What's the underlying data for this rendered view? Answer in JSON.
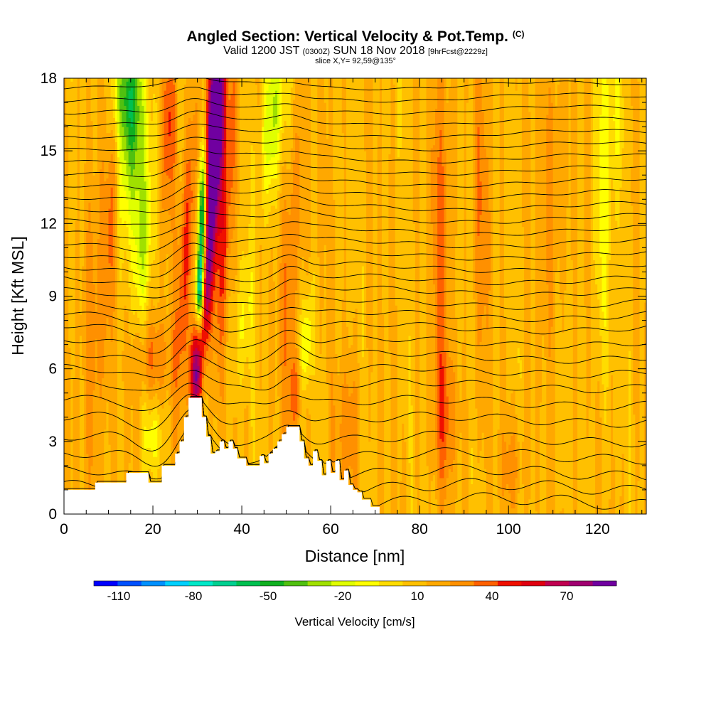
{
  "title": {
    "line1": "Angled Section: Vertical Velocity & Pot.Temp.",
    "line1_tag": "(C)",
    "line2_a": "Valid 1200 JST",
    "line2_b": "(0300Z)",
    "line2_c": "SUN 18 Nov 2018",
    "line2_d": "[9hrFcst@2229z]",
    "line3": "slice X,Y= 92,59@135°"
  },
  "chart_data": {
    "type": "heatmap",
    "xlabel": "Distance [nm]",
    "ylabel": "Height [Kft MSL]",
    "xlim": [
      0,
      131
    ],
    "ylim": [
      0,
      18
    ],
    "x_ticks": [
      0,
      20,
      40,
      60,
      80,
      100,
      120
    ],
    "y_ticks": [
      0,
      3,
      6,
      9,
      12,
      15,
      18
    ],
    "fill_field": "Vertical Velocity [cm/s]",
    "contour_field": "Potential Temperature (C)",
    "colorbar": {
      "label": "Vertical Velocity [cm/s]",
      "tick_labels": [
        "-110",
        "-80",
        "-50",
        "-20",
        "10",
        "40",
        "70"
      ],
      "tick_values": [
        -110,
        -80,
        -50,
        -20,
        10,
        40,
        70
      ],
      "range": [
        -120,
        90
      ],
      "colors": [
        "#0000ff",
        "#0050ff",
        "#0090ff",
        "#00d0ff",
        "#00e8c8",
        "#00d090",
        "#00c050",
        "#10b020",
        "#50c010",
        "#a0e000",
        "#e0ff00",
        "#ffff00",
        "#ffdc00",
        "#ffc000",
        "#ffa800",
        "#ff9000",
        "#ff6000",
        "#f01000",
        "#e00010",
        "#c00050",
        "#a00070",
        "#7000a0"
      ]
    },
    "terrain_profile_kft": [
      [
        0,
        1.0
      ],
      [
        6,
        1.0
      ],
      [
        7,
        1.3
      ],
      [
        13,
        1.3
      ],
      [
        14,
        1.7
      ],
      [
        18,
        1.7
      ],
      [
        19,
        1.3
      ],
      [
        21,
        1.3
      ],
      [
        22,
        2.0
      ],
      [
        24,
        2.0
      ],
      [
        25,
        2.5
      ],
      [
        26,
        3.0
      ],
      [
        27,
        4.0
      ],
      [
        28,
        4.8
      ],
      [
        30,
        4.8
      ],
      [
        31,
        4.0
      ],
      [
        32,
        3.2
      ],
      [
        33,
        2.5
      ],
      [
        34,
        2.6
      ],
      [
        35,
        3.0
      ],
      [
        36,
        2.7
      ],
      [
        37,
        3.0
      ],
      [
        38,
        2.7
      ],
      [
        39,
        2.3
      ],
      [
        40,
        2.3
      ],
      [
        41,
        2.0
      ],
      [
        43,
        2.0
      ],
      [
        44,
        2.4
      ],
      [
        45,
        2.1
      ],
      [
        46,
        2.5
      ],
      [
        47,
        2.7
      ],
      [
        48,
        3.0
      ],
      [
        49,
        3.3
      ],
      [
        50,
        3.6
      ],
      [
        52,
        3.6
      ],
      [
        53,
        3.0
      ],
      [
        54,
        2.3
      ],
      [
        55,
        2.0
      ],
      [
        56,
        2.6
      ],
      [
        57,
        2.2
      ],
      [
        58,
        1.6
      ],
      [
        59,
        2.2
      ],
      [
        60,
        1.7
      ],
      [
        61,
        2.2
      ],
      [
        62,
        1.4
      ],
      [
        63,
        1.8
      ],
      [
        64,
        1.2
      ],
      [
        65,
        1.0
      ],
      [
        66,
        0.9
      ],
      [
        67,
        0.6
      ],
      [
        68,
        0.6
      ],
      [
        69,
        0.3
      ],
      [
        70,
        0.3
      ],
      [
        71,
        0.0
      ],
      [
        131,
        0.0
      ]
    ],
    "w_features": [
      {
        "x": 29.5,
        "z": 5.7,
        "w": 60,
        "sx": 0.9,
        "sz": 1.4,
        "tilt": 0
      },
      {
        "x": 31.5,
        "z": 8.5,
        "w": 50,
        "sx": 1.1,
        "sz": 2.0,
        "tilt": 0.25
      },
      {
        "x": 33.5,
        "z": 13.5,
        "w": 78,
        "sx": 1.3,
        "sz": 3.2,
        "tilt": 0.35
      },
      {
        "x": 34.0,
        "z": 17.0,
        "w": 65,
        "sx": 1.4,
        "sz": 2.0,
        "tilt": 0.3
      },
      {
        "x": 31.0,
        "z": 11.5,
        "w": -95,
        "sx": 0.7,
        "sz": 2.6,
        "tilt": 0.1
      },
      {
        "x": 30.5,
        "z": 9.2,
        "w": -70,
        "sx": 0.6,
        "sz": 1.0,
        "tilt": 0.1
      },
      {
        "x": 27.5,
        "z": 11.0,
        "w": 35,
        "sx": 1.2,
        "sz": 4.0,
        "tilt": 0.25
      },
      {
        "x": 36.5,
        "z": 12.5,
        "w": 30,
        "sx": 1.2,
        "sz": 4.5,
        "tilt": 0.3
      },
      {
        "x": 15.0,
        "z": 15.5,
        "w": -45,
        "sx": 2.5,
        "sz": 3.0,
        "tilt": 0.3
      },
      {
        "x": 18.0,
        "z": 11.5,
        "w": -30,
        "sx": 1.6,
        "sz": 2.5,
        "tilt": 0.3
      },
      {
        "x": 13.5,
        "z": 17.5,
        "w": -35,
        "sx": 2.0,
        "sz": 1.5,
        "tilt": 0.0
      },
      {
        "x": 11.0,
        "z": 13.0,
        "w": 28,
        "sx": 1.2,
        "sz": 3.0,
        "tilt": 0.2
      },
      {
        "x": 23.5,
        "z": 16.0,
        "w": 30,
        "sx": 1.2,
        "sz": 2.5,
        "tilt": 0.1
      },
      {
        "x": 47.0,
        "z": 16.5,
        "w": -40,
        "sx": 1.8,
        "sz": 2.5,
        "tilt": 0.3
      },
      {
        "x": 51.5,
        "z": 11.5,
        "w": 22,
        "sx": 1.6,
        "sz": 4.0,
        "tilt": 0.3
      },
      {
        "x": 54.5,
        "z": 7.0,
        "w": -30,
        "sx": 0.9,
        "sz": 1.5,
        "tilt": 0.2
      },
      {
        "x": 52.0,
        "z": 5.0,
        "w": 25,
        "sx": 1.3,
        "sz": 1.3,
        "tilt": 0.0
      },
      {
        "x": 40.5,
        "z": 8.0,
        "w": -18,
        "sx": 1.5,
        "sz": 2.0,
        "tilt": 0.3
      },
      {
        "x": 7.0,
        "z": 8.0,
        "w": 20,
        "sx": 1.8,
        "sz": 5.0,
        "tilt": 0.0
      },
      {
        "x": 85.0,
        "z": 12.0,
        "w": 22,
        "sx": 1.5,
        "sz": 6.0,
        "tilt": 0.0
      },
      {
        "x": 86.0,
        "z": 4.0,
        "w": 18,
        "sx": 2.0,
        "sz": 2.0,
        "tilt": 0.0
      },
      {
        "x": 94.0,
        "z": 13.0,
        "w": 15,
        "sx": 1.5,
        "sz": 5.0,
        "tilt": 0.0
      },
      {
        "x": 121.0,
        "z": 12.0,
        "w": -20,
        "sx": 1.5,
        "sz": 4.5,
        "tilt": 0.0
      },
      {
        "x": 124.0,
        "z": 16.5,
        "w": -15,
        "sx": 2.0,
        "sz": 2.0,
        "tilt": 0.0
      },
      {
        "x": 110.0,
        "z": 14.0,
        "w": 16,
        "sx": 2.0,
        "sz": 4.0,
        "tilt": 0.0
      },
      {
        "x": 101.0,
        "z": 2.0,
        "w": 15,
        "sx": 2.0,
        "sz": 1.5,
        "tilt": 0.0
      },
      {
        "x": 20.0,
        "z": 3.2,
        "w": -22,
        "sx": 1.5,
        "sz": 1.0,
        "tilt": 0.0
      },
      {
        "x": 20.0,
        "z": 6.5,
        "w": 22,
        "sx": 3.0,
        "sz": 1.2,
        "tilt": 0.0
      },
      {
        "x": 64.0,
        "z": 3.5,
        "w": 18,
        "sx": 2.0,
        "sz": 2.0,
        "tilt": 0.0
      }
    ],
    "isentrope_heights_kft": [
      0.5,
      1.1,
      1.7,
      2.4,
      3.1,
      3.9,
      4.6,
      5.3,
      5.9,
      6.5,
      7.1,
      7.7,
      8.2,
      8.7,
      9.2,
      9.7,
      10.2,
      10.7,
      11.2,
      11.7,
      12.2,
      12.7,
      13.2,
      13.7,
      14.2,
      14.7,
      15.2,
      15.7,
      16.2,
      16.7,
      17.2,
      17.7
    ]
  }
}
